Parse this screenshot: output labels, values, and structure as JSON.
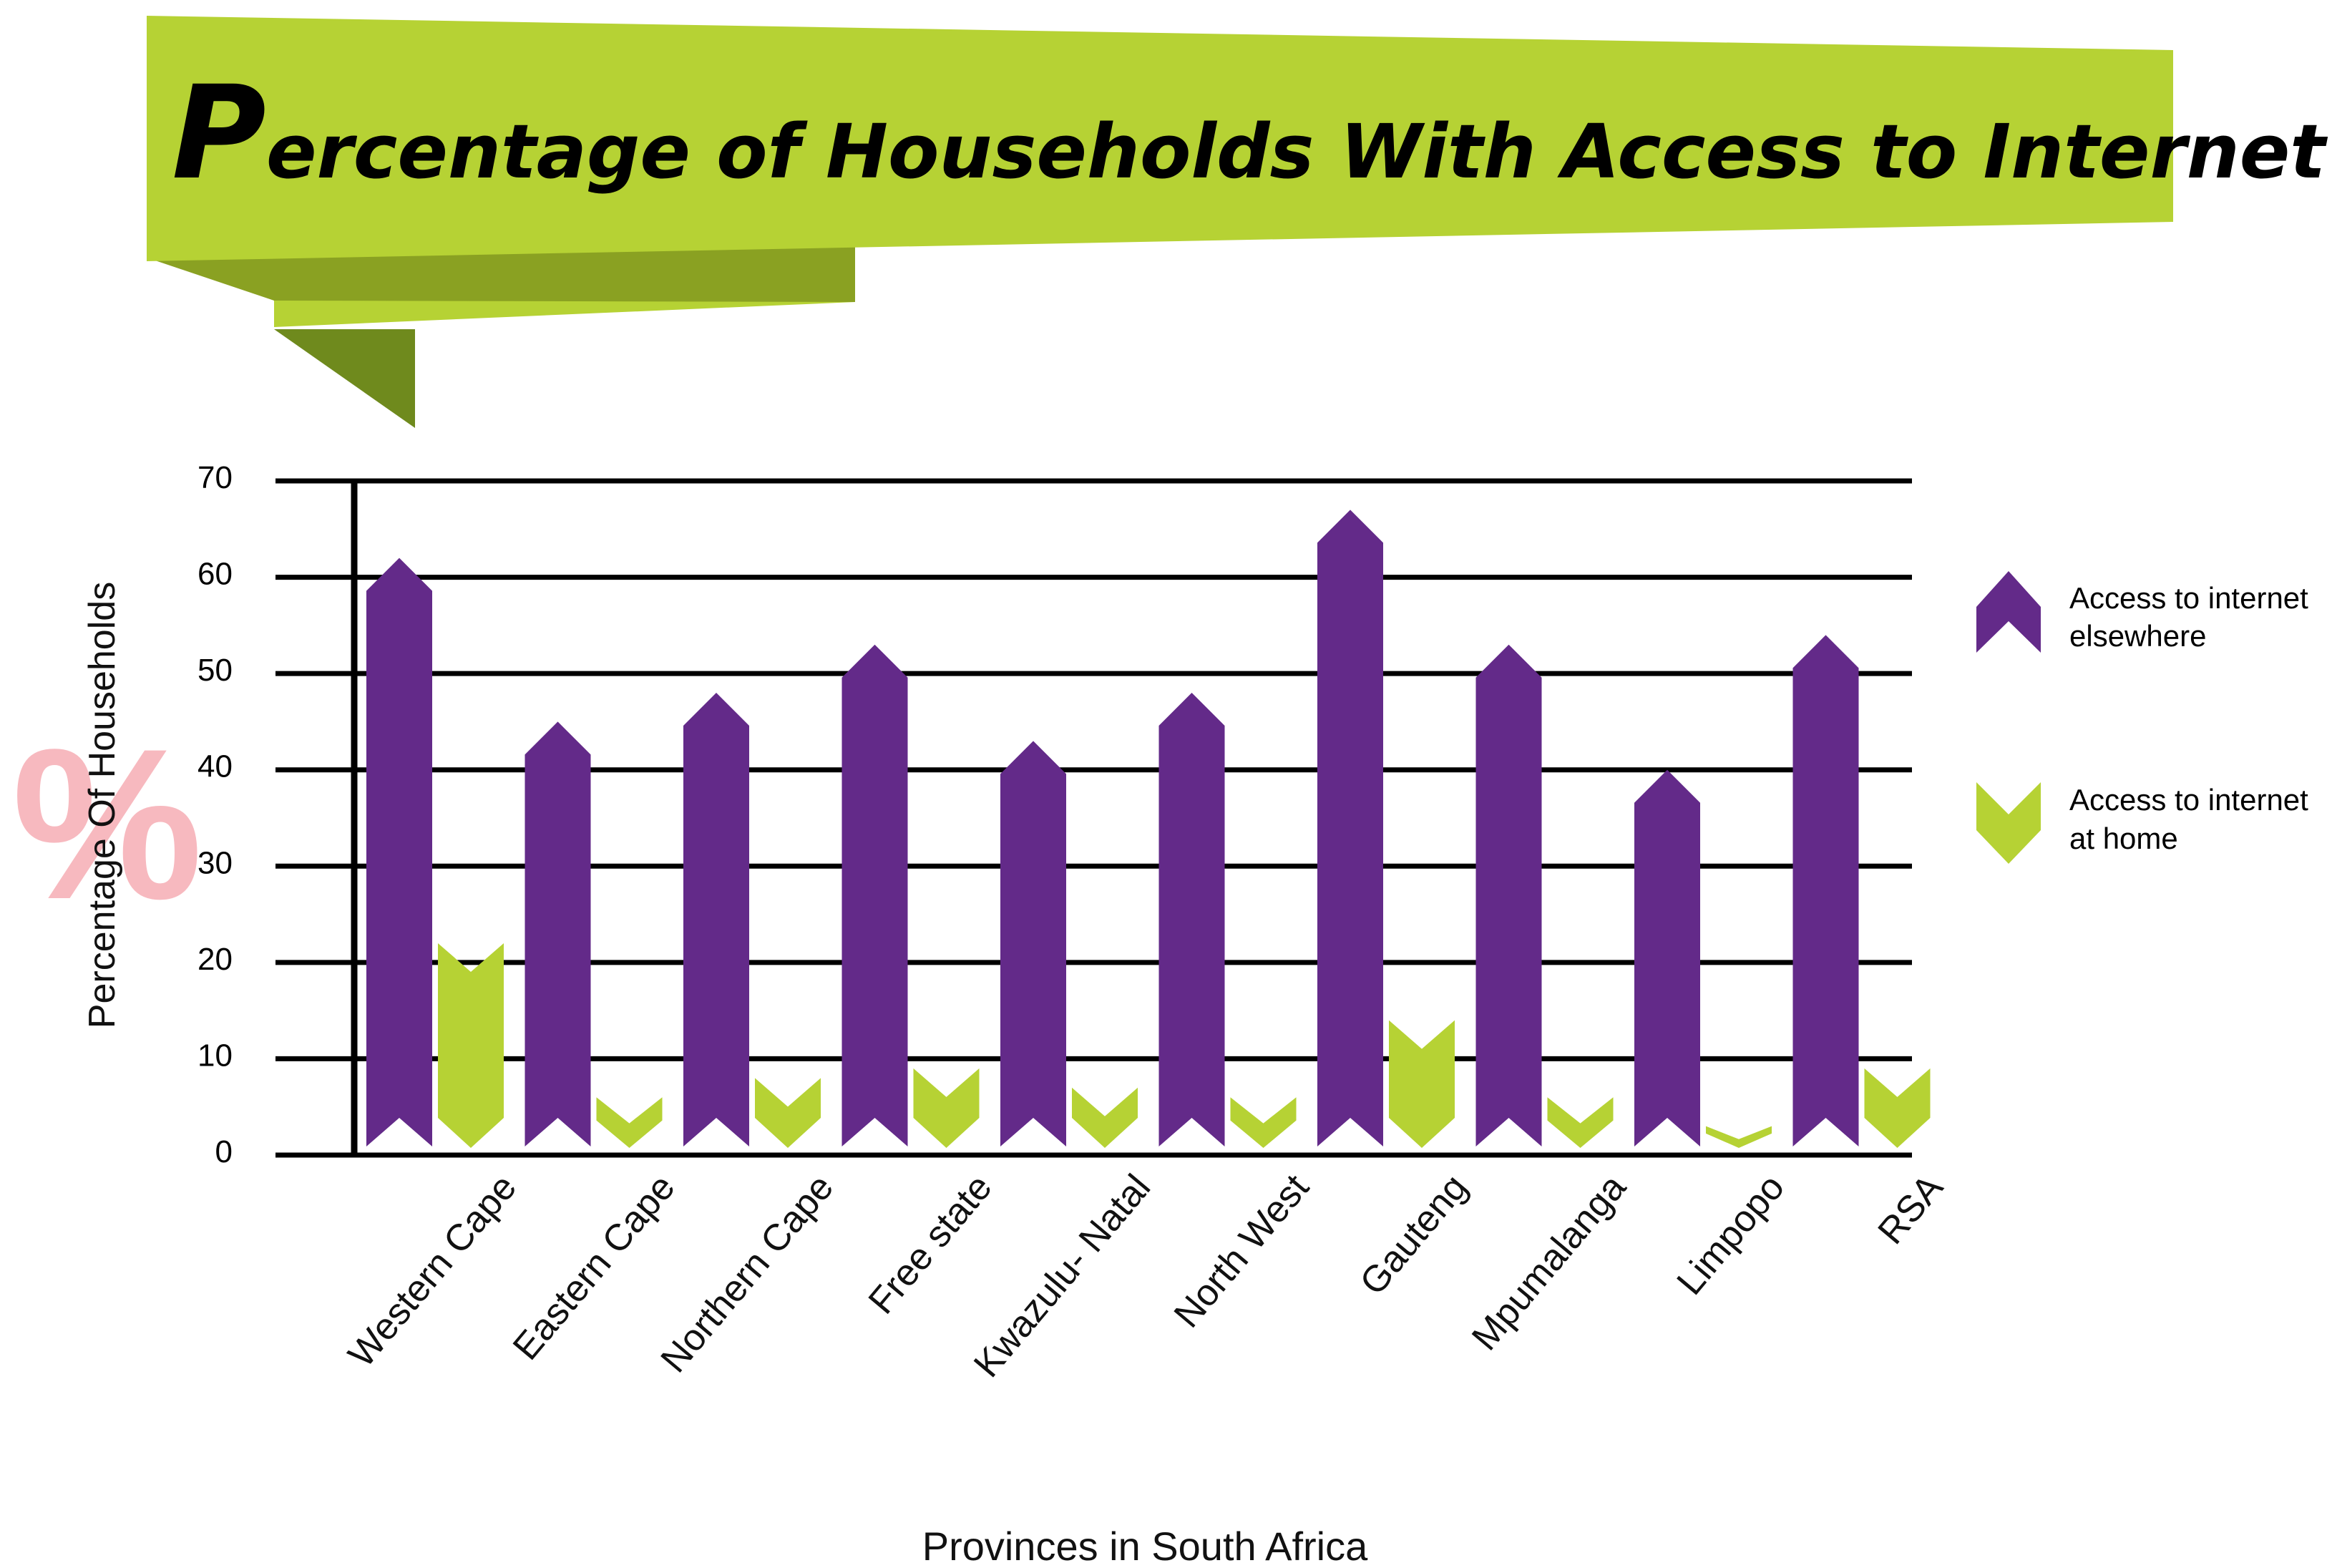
{
  "chart_data": {
    "type": "bar",
    "title": "Percentage of Households With Access to Internet by Province",
    "title_initial": "P",
    "title_rest": "ercentage of Households With Access to Internet by Province",
    "xlabel": "Provinces in South Africa",
    "ylabel": "Percentage Of Households",
    "ylabel_symbol": "%",
    "ylim": [
      0,
      70
    ],
    "yticks": [
      0,
      10,
      20,
      30,
      40,
      50,
      60,
      70
    ],
    "grid": true,
    "legend_position": "right",
    "categories": [
      "Western Cape",
      "Eastern Cape",
      "Northern Cape",
      "Free state",
      "Kwazulu- Natal",
      "North West",
      "Gauteng",
      "Mpumalanga",
      "Limpopo",
      "RSA"
    ],
    "series": [
      {
        "name": "Access to internet elsewhere",
        "legend_lines": [
          "Access to internet",
          "elsewhere"
        ],
        "color": "#632a89",
        "values": [
          62,
          45,
          48,
          53,
          43,
          48,
          67,
          53,
          40,
          54
        ]
      },
      {
        "name": "Access to internet at home",
        "legend_lines": [
          "Access to internet",
          "at home"
        ],
        "color": "#b6d234",
        "values": [
          22,
          6,
          8,
          9,
          7,
          6,
          14,
          6,
          3,
          9
        ]
      }
    ]
  },
  "colors": {
    "banner": "#b6d234",
    "banner_fold": "#8aa122",
    "banner_dark": "#6f8a1d",
    "axis": "#000000",
    "percent_symbol": "#f7b9bf"
  }
}
